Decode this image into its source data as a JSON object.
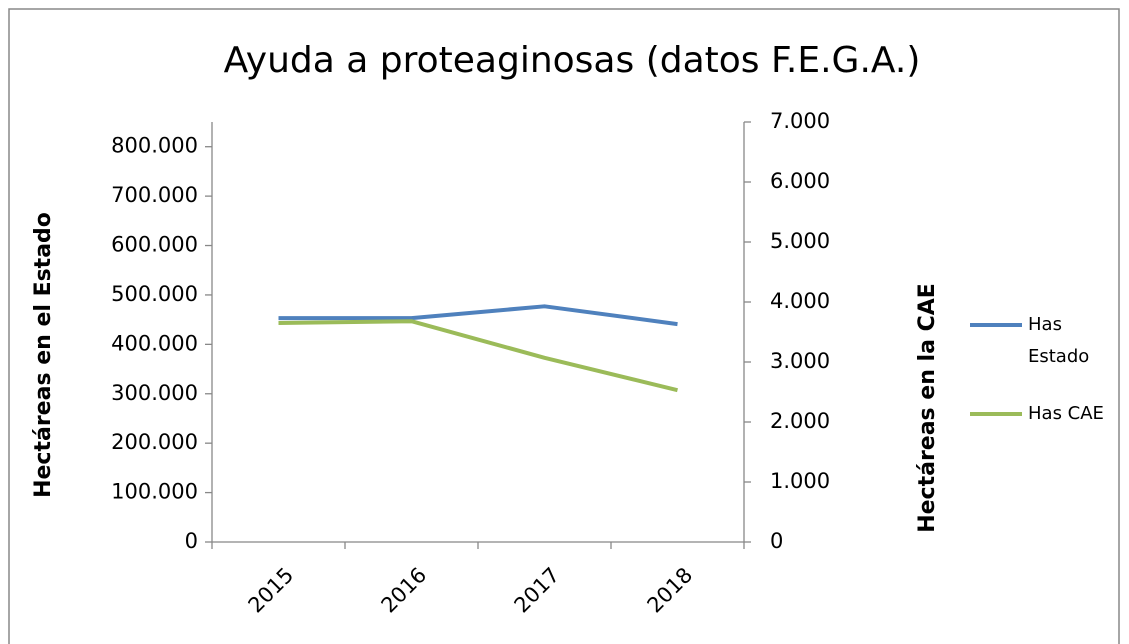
{
  "chart_data": {
    "type": "line",
    "title": "Ayuda a proteaginosas (datos F.E.G.A.)",
    "y_label": "Hectáreas en el Estado",
    "y2_label": "Hectáreas en la CAE",
    "categories": [
      "2015",
      "2016",
      "2017",
      "2018"
    ],
    "series": [
      {
        "name": "Has Estado",
        "color": "#4f81bd",
        "values": [
          453000,
          453000,
          477000,
          441000
        ]
      },
      {
        "name": "Has CAE",
        "color": "#9bbb59",
        "axis": "y2",
        "values": [
          3650,
          3680,
          3070,
          2530
        ]
      }
    ],
    "ylim": [
      0,
      850000
    ],
    "yticks": [
      0,
      {
        "value": 100000,
        "label": "100.000"
      },
      {
        "value": 200000,
        "label": "200.000"
      },
      {
        "value": 300000,
        "label": "300.000"
      },
      {
        "value": 400000,
        "label": "400.000"
      },
      {
        "value": 500000,
        "label": "500.000"
      },
      {
        "value": 600000,
        "label": "600.000"
      },
      {
        "value": 700000,
        "label": "700.000"
      },
      {
        "value": 800000,
        "label": "800.000"
      }
    ],
    "y2lim": [
      0,
      7000
    ],
    "y2ticks": [
      0,
      {
        "value": 1000,
        "label": "1.000"
      },
      {
        "value": 2000,
        "label": "2.000"
      },
      {
        "value": 3000,
        "label": "3.000"
      },
      {
        "value": 4000,
        "label": "4.000"
      },
      {
        "value": 5000,
        "label": "5.000"
      },
      {
        "value": 6000,
        "label": "6.000"
      },
      {
        "value": 7000,
        "label": "7.000"
      }
    ],
    "legend": "right"
  }
}
